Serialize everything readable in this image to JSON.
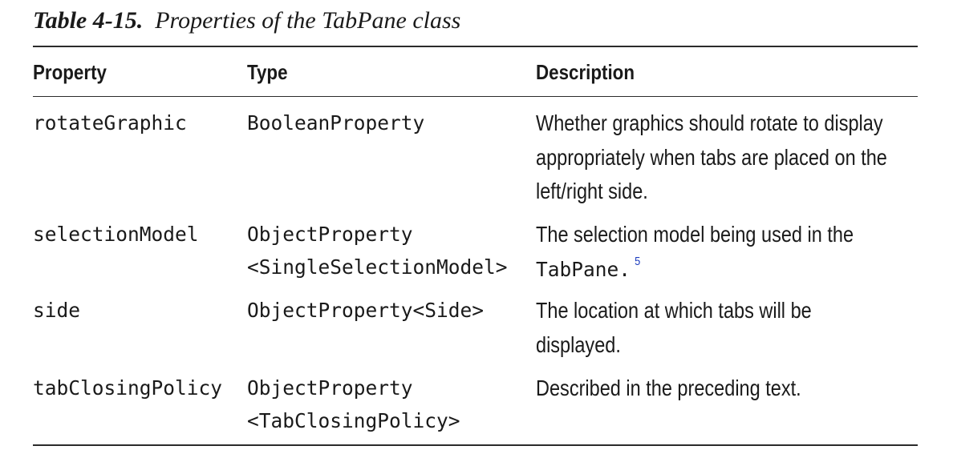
{
  "caption": {
    "label": "Table 4-15.",
    "title": "Properties of the TabPane class"
  },
  "table": {
    "headers": [
      "Property",
      "Type",
      "Description"
    ],
    "rows": [
      {
        "property": "rotateGraphic",
        "type_lines": [
          "BooleanProperty"
        ],
        "description_lines": [
          "Whether graphics should rotate to display",
          "appropriately when tabs are placed on the",
          "left/right side."
        ]
      },
      {
        "property": "selectionModel",
        "type_lines": [
          "ObjectProperty",
          "<SingleSelectionModel>"
        ],
        "description_lines": [
          "The selection model being used in the"
        ],
        "description_code": "TabPane.",
        "footnote": "5"
      },
      {
        "property": "side",
        "type_lines": [
          "ObjectProperty<Side>"
        ],
        "description_lines": [
          "The location at which tabs will be",
          "displayed."
        ]
      },
      {
        "property": "tabClosingPolicy",
        "type_lines": [
          "ObjectProperty",
          "<TabClosingPolicy>"
        ],
        "description_lines": [
          "Described in the preceding text."
        ]
      }
    ]
  }
}
